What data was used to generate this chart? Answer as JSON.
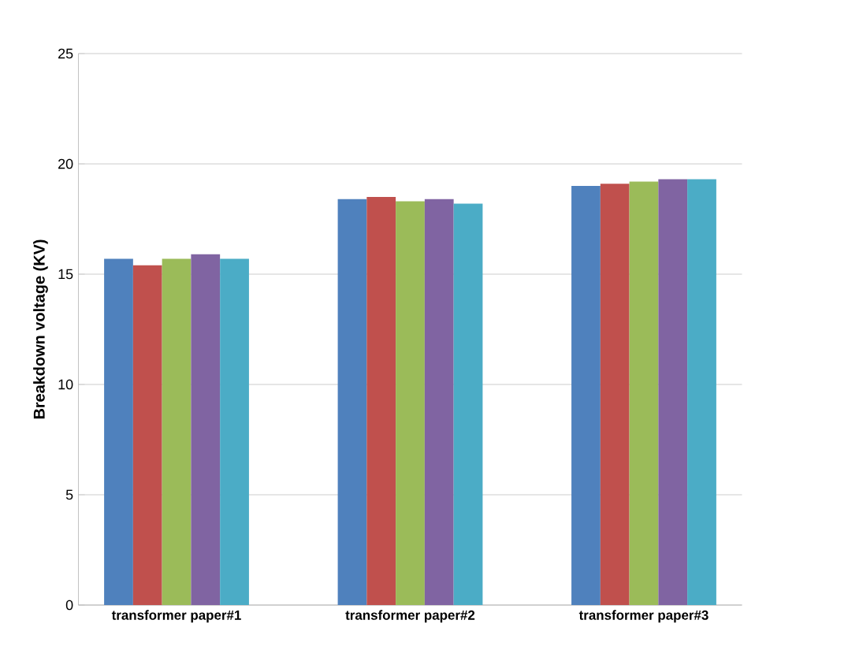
{
  "chart_data": {
    "type": "bar",
    "ylabel": "Breakdown voltage (KV)",
    "categories": [
      "transformer paper#1",
      "transformer paper#2",
      "transformer paper#3"
    ],
    "series": [
      {
        "color": "#4f81bd",
        "values": [
          15.7,
          18.4,
          19.0
        ]
      },
      {
        "color": "#c0504d",
        "values": [
          15.4,
          18.5,
          19.1
        ]
      },
      {
        "color": "#9bbb59",
        "values": [
          15.7,
          18.3,
          19.2
        ]
      },
      {
        "color": "#8064a2",
        "values": [
          15.9,
          18.4,
          19.3
        ]
      },
      {
        "color": "#4bacc6",
        "values": [
          15.7,
          18.2,
          19.3
        ]
      }
    ],
    "ylim": [
      0,
      25
    ],
    "yticks": [
      0,
      5,
      10,
      15,
      20,
      25
    ],
    "grid": "y"
  }
}
